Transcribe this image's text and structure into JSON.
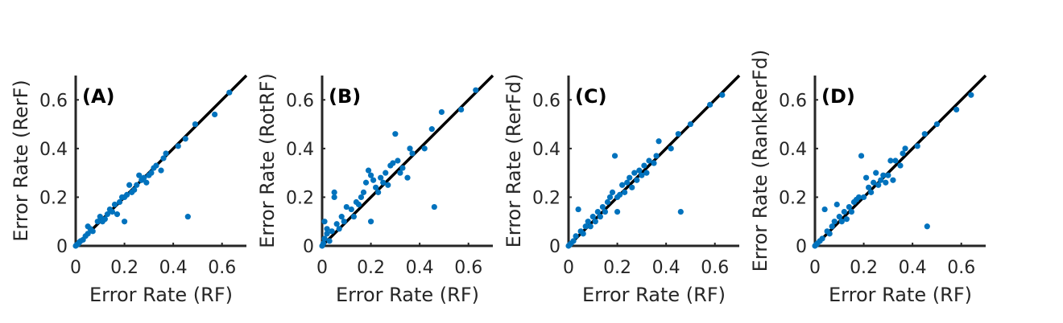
{
  "colors": {
    "points": "#0072bd",
    "identity_line": "#000000",
    "axes": "#262626"
  },
  "chart_data": [
    {
      "type": "scatter",
      "panel_label": "(A)",
      "xlabel": "Error Rate (RF)",
      "ylabel": "Error Rate (RerF)",
      "xlim": [
        0,
        0.7
      ],
      "ylim": [
        0,
        0.7
      ],
      "xticks": [
        "0",
        "0.2",
        "0.4",
        "0.6"
      ],
      "yticks": [
        "0",
        "0.2",
        "0.4",
        "0.6"
      ],
      "identity_line": true,
      "grid": false,
      "points": [
        [
          0,
          0
        ],
        [
          0.005,
          0.005
        ],
        [
          0.01,
          0.008
        ],
        [
          0.015,
          0.015
        ],
        [
          0.02,
          0.02
        ],
        [
          0.03,
          0.025
        ],
        [
          0.04,
          0.04
        ],
        [
          0.05,
          0.05
        ],
        [
          0.06,
          0.07
        ],
        [
          0.05,
          0.08
        ],
        [
          0.07,
          0.06
        ],
        [
          0.09,
          0.1
        ],
        [
          0.1,
          0.12
        ],
        [
          0.11,
          0.1
        ],
        [
          0.12,
          0.11
        ],
        [
          0.13,
          0.13
        ],
        [
          0.14,
          0.15
        ],
        [
          0.15,
          0.14
        ],
        [
          0.16,
          0.17
        ],
        [
          0.17,
          0.13
        ],
        [
          0.18,
          0.18
        ],
        [
          0.19,
          0.2
        ],
        [
          0.2,
          0.2
        ],
        [
          0.2,
          0.1
        ],
        [
          0.21,
          0.21
        ],
        [
          0.22,
          0.25
        ],
        [
          0.23,
          0.22
        ],
        [
          0.24,
          0.23
        ],
        [
          0.25,
          0.25
        ],
        [
          0.26,
          0.29
        ],
        [
          0.27,
          0.27
        ],
        [
          0.28,
          0.28
        ],
        [
          0.29,
          0.26
        ],
        [
          0.3,
          0.29
        ],
        [
          0.31,
          0.3
        ],
        [
          0.32,
          0.32
        ],
        [
          0.33,
          0.33
        ],
        [
          0.35,
          0.31
        ],
        [
          0.36,
          0.36
        ],
        [
          0.37,
          0.38
        ],
        [
          0.42,
          0.41
        ],
        [
          0.45,
          0.44
        ],
        [
          0.46,
          0.12
        ],
        [
          0.49,
          0.5
        ],
        [
          0.57,
          0.54
        ],
        [
          0.63,
          0.63
        ]
      ]
    },
    {
      "type": "scatter",
      "panel_label": "(B)",
      "xlabel": "Error Rate (RF)",
      "ylabel": "Error Rate (RotRF)",
      "xlim": [
        0,
        0.7
      ],
      "ylim": [
        0,
        0.7
      ],
      "xticks": [
        "0",
        "0.2",
        "0.4",
        "0.6"
      ],
      "yticks": [
        "0",
        "0.2",
        "0.4",
        "0.6"
      ],
      "identity_line": true,
      "grid": false,
      "points": [
        [
          0,
          0
        ],
        [
          0.005,
          0.01
        ],
        [
          0.01,
          0.03
        ],
        [
          0.01,
          0.1
        ],
        [
          0.02,
          0.05
        ],
        [
          0.02,
          0.07
        ],
        [
          0.03,
          0.02
        ],
        [
          0.04,
          0.06
        ],
        [
          0.05,
          0.22
        ],
        [
          0.05,
          0.2
        ],
        [
          0.06,
          0.09
        ],
        [
          0.07,
          0.07
        ],
        [
          0.08,
          0.12
        ],
        [
          0.09,
          0.1
        ],
        [
          0.1,
          0.16
        ],
        [
          0.12,
          0.15
        ],
        [
          0.13,
          0.12
        ],
        [
          0.14,
          0.18
        ],
        [
          0.15,
          0.17
        ],
        [
          0.16,
          0.2
        ],
        [
          0.17,
          0.22
        ],
        [
          0.18,
          0.26
        ],
        [
          0.19,
          0.31
        ],
        [
          0.2,
          0.29
        ],
        [
          0.2,
          0.1
        ],
        [
          0.21,
          0.27
        ],
        [
          0.22,
          0.24
        ],
        [
          0.23,
          0.22
        ],
        [
          0.24,
          0.28
        ],
        [
          0.25,
          0.26
        ],
        [
          0.26,
          0.3
        ],
        [
          0.27,
          0.25
        ],
        [
          0.28,
          0.33
        ],
        [
          0.29,
          0.34
        ],
        [
          0.3,
          0.46
        ],
        [
          0.31,
          0.35
        ],
        [
          0.32,
          0.3
        ],
        [
          0.33,
          0.32
        ],
        [
          0.35,
          0.28
        ],
        [
          0.36,
          0.4
        ],
        [
          0.37,
          0.38
        ],
        [
          0.42,
          0.4
        ],
        [
          0.45,
          0.48
        ],
        [
          0.46,
          0.16
        ],
        [
          0.49,
          0.55
        ],
        [
          0.57,
          0.56
        ],
        [
          0.63,
          0.64
        ]
      ]
    },
    {
      "type": "scatter",
      "panel_label": "(C)",
      "xlabel": "Error Rate (RF)",
      "ylabel": "Error Rate (RerFd)",
      "xlim": [
        0,
        0.7
      ],
      "ylim": [
        0,
        0.7
      ],
      "xticks": [
        "0",
        "0.2",
        "0.4",
        "0.6"
      ],
      "yticks": [
        "0",
        "0.2",
        "0.4",
        "0.6"
      ],
      "identity_line": true,
      "grid": false,
      "points": [
        [
          0,
          0
        ],
        [
          0.005,
          0.005
        ],
        [
          0.01,
          0.01
        ],
        [
          0.02,
          0.02
        ],
        [
          0.03,
          0.04
        ],
        [
          0.04,
          0.15
        ],
        [
          0.05,
          0.06
        ],
        [
          0.06,
          0.05
        ],
        [
          0.07,
          0.08
        ],
        [
          0.08,
          0.1
        ],
        [
          0.09,
          0.08
        ],
        [
          0.1,
          0.12
        ],
        [
          0.11,
          0.1
        ],
        [
          0.12,
          0.14
        ],
        [
          0.13,
          0.12
        ],
        [
          0.14,
          0.16
        ],
        [
          0.15,
          0.14
        ],
        [
          0.16,
          0.18
        ],
        [
          0.17,
          0.2
        ],
        [
          0.18,
          0.22
        ],
        [
          0.19,
          0.37
        ],
        [
          0.2,
          0.2
        ],
        [
          0.2,
          0.14
        ],
        [
          0.21,
          0.21
        ],
        [
          0.22,
          0.25
        ],
        [
          0.23,
          0.22
        ],
        [
          0.24,
          0.26
        ],
        [
          0.25,
          0.28
        ],
        [
          0.26,
          0.24
        ],
        [
          0.27,
          0.3
        ],
        [
          0.28,
          0.27
        ],
        [
          0.29,
          0.31
        ],
        [
          0.3,
          0.29
        ],
        [
          0.31,
          0.33
        ],
        [
          0.32,
          0.3
        ],
        [
          0.33,
          0.35
        ],
        [
          0.35,
          0.34
        ],
        [
          0.36,
          0.37
        ],
        [
          0.37,
          0.43
        ],
        [
          0.42,
          0.4
        ],
        [
          0.45,
          0.46
        ],
        [
          0.46,
          0.14
        ],
        [
          0.5,
          0.5
        ],
        [
          0.58,
          0.58
        ],
        [
          0.63,
          0.62
        ]
      ]
    },
    {
      "type": "scatter",
      "panel_label": "(D)",
      "xlabel": "Error Rate (RF)",
      "ylabel": "Error Rate (RankRerFd)",
      "xlim": [
        0,
        0.7
      ],
      "ylim": [
        0,
        0.7
      ],
      "xticks": [
        "0",
        "0.2",
        "0.4",
        "0.6"
      ],
      "yticks": [
        "0",
        "0.2",
        "0.4",
        "0.6"
      ],
      "identity_line": true,
      "grid": false,
      "points": [
        [
          0,
          0
        ],
        [
          0.005,
          0.005
        ],
        [
          0.01,
          0.01
        ],
        [
          0.02,
          0.02
        ],
        [
          0.03,
          0.03
        ],
        [
          0.04,
          0.15
        ],
        [
          0.05,
          0.06
        ],
        [
          0.06,
          0.05
        ],
        [
          0.07,
          0.08
        ],
        [
          0.08,
          0.1
        ],
        [
          0.09,
          0.17
        ],
        [
          0.1,
          0.12
        ],
        [
          0.11,
          0.1
        ],
        [
          0.12,
          0.14
        ],
        [
          0.13,
          0.11
        ],
        [
          0.14,
          0.16
        ],
        [
          0.15,
          0.14
        ],
        [
          0.16,
          0.18
        ],
        [
          0.17,
          0.19
        ],
        [
          0.18,
          0.2
        ],
        [
          0.19,
          0.37
        ],
        [
          0.2,
          0.2
        ],
        [
          0.21,
          0.28
        ],
        [
          0.22,
          0.24
        ],
        [
          0.23,
          0.22
        ],
        [
          0.24,
          0.26
        ],
        [
          0.25,
          0.3
        ],
        [
          0.26,
          0.25
        ],
        [
          0.27,
          0.27
        ],
        [
          0.28,
          0.29
        ],
        [
          0.29,
          0.26
        ],
        [
          0.3,
          0.29
        ],
        [
          0.31,
          0.35
        ],
        [
          0.32,
          0.27
        ],
        [
          0.33,
          0.35
        ],
        [
          0.35,
          0.33
        ],
        [
          0.36,
          0.38
        ],
        [
          0.37,
          0.4
        ],
        [
          0.42,
          0.41
        ],
        [
          0.45,
          0.46
        ],
        [
          0.46,
          0.08
        ],
        [
          0.5,
          0.5
        ],
        [
          0.58,
          0.56
        ],
        [
          0.64,
          0.62
        ]
      ]
    }
  ]
}
